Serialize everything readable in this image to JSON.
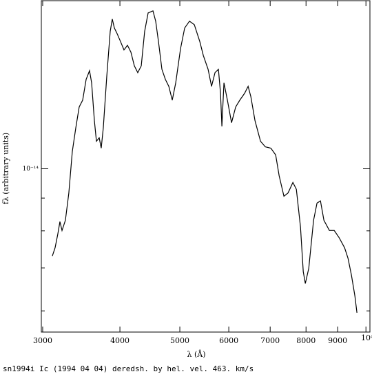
{
  "chart_data": {
    "type": "line",
    "xscale": "log",
    "yscale": "log",
    "color": "#000000",
    "xlabel": "λ (Å)",
    "ylabel": "fλ (arbitrary units)",
    "caption": "sn1994i Ic (1994 04 04) deredsh. by hel. vel.   463. km/s",
    "xlim": [
      2985,
      10150
    ],
    "ylim": [
      5.56e-15,
      1.83e-14
    ],
    "xticks": [
      3000,
      4000,
      5000,
      6000,
      7000,
      8000,
      9000,
      {
        "value": 10000,
        "label": "10⁴"
      }
    ],
    "yticks": [
      {
        "value": 1e-14,
        "label": "10⁻¹⁴"
      }
    ],
    "yminorticks": [
      6e-15,
      7e-15,
      8e-15,
      9e-15
    ],
    "x": [
      3110,
      3142,
      3174,
      3199,
      3224,
      3265,
      3307,
      3350,
      3394,
      3437,
      3482,
      3527,
      3572,
      3600,
      3637,
      3665,
      3703,
      3731,
      3760,
      3809,
      3858,
      3888,
      3918,
      3958,
      4010,
      4061,
      4114,
      4167,
      4221,
      4275,
      4331,
      4386,
      4443,
      4524,
      4570,
      4618,
      4677,
      4738,
      4799,
      4861,
      4924,
      5013,
      5091,
      5183,
      5277,
      5387,
      5457,
      5555,
      5627,
      5700,
      5773,
      5818,
      5848,
      5893,
      5969,
      6062,
      6156,
      6252,
      6365,
      6448,
      6514,
      6615,
      6753,
      6875,
      7018,
      7145,
      7237,
      7368,
      7483,
      7618,
      7717,
      7837,
      7918,
      7979,
      8082,
      8228,
      8334,
      8442,
      8551,
      8728,
      8886,
      9047,
      9235,
      9354,
      9475,
      9597,
      9671
    ],
    "values": [
      7.31e-15,
      7.53e-15,
      7.91e-15,
      8.27e-15,
      8.01e-15,
      8.31e-15,
      9.17e-15,
      1.064e-14,
      1.159e-14,
      1.249e-14,
      1.28e-14,
      1.379e-14,
      1.423e-14,
      1.362e-14,
      1.189e-14,
      1.104e-14,
      1.118e-14,
      1.077e-14,
      1.159e-14,
      1.395e-14,
      1.639e-14,
      1.713e-14,
      1.659e-14,
      1.626e-14,
      1.579e-14,
      1.533e-14,
      1.559e-14,
      1.521e-14,
      1.448e-14,
      1.413e-14,
      1.448e-14,
      1.639e-14,
      1.751e-14,
      1.764e-14,
      1.7e-14,
      1.579e-14,
      1.43e-14,
      1.379e-14,
      1.345e-14,
      1.28e-14,
      1.362e-14,
      1.54e-14,
      1.659e-14,
      1.7e-14,
      1.679e-14,
      1.579e-14,
      1.503e-14,
      1.43e-14,
      1.345e-14,
      1.413e-14,
      1.43e-14,
      1.312e-14,
      1.165e-14,
      1.362e-14,
      1.28e-14,
      1.18e-14,
      1.249e-14,
      1.28e-14,
      1.312e-14,
      1.345e-14,
      1.296e-14,
      1.189e-14,
      1.104e-14,
      1.082e-14,
      1.077e-14,
      1.051e-14,
      9.76e-15,
      9.06e-15,
      9.17e-15,
      9.52e-15,
      9.29e-15,
      8.11e-15,
      6.91e-15,
      6.62e-15,
      6.99e-15,
      8.31e-15,
      8.84e-15,
      8.91e-15,
      8.31e-15,
      8.01e-15,
      8.01e-15,
      7.81e-15,
      7.53e-15,
      7.25e-15,
      6.82e-15,
      6.33e-15,
      5.96e-15
    ]
  }
}
